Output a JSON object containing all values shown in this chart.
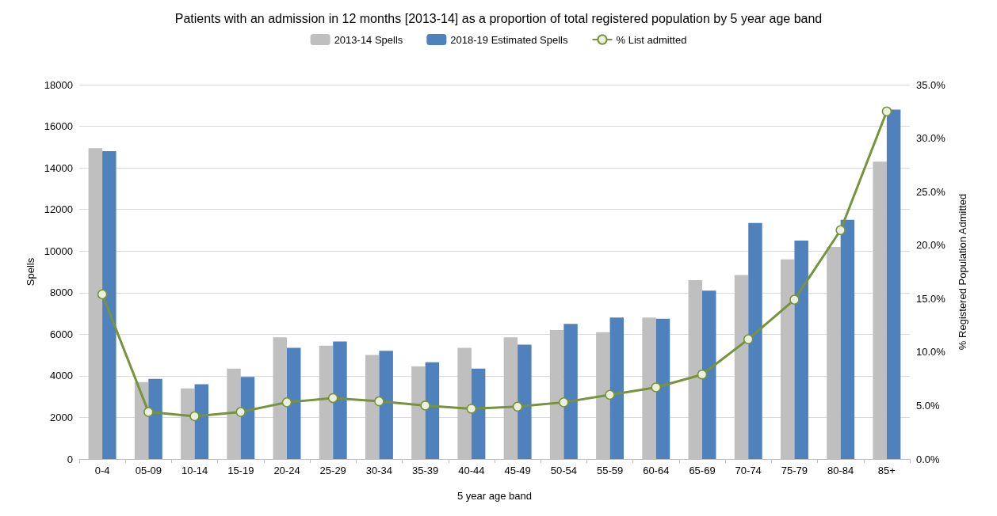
{
  "chart_data": {
    "type": "bar",
    "title": "Patients with an admission in 12 months [2013-14] as a proportion of total registered population by 5 year age band",
    "xlabel": "5 year age band",
    "ylabel": "Spells",
    "y2label": "% Registered Population Admitted",
    "categories": [
      "0-4",
      "05-09",
      "10-14",
      "15-19",
      "20-24",
      "25-29",
      "30-34",
      "35-39",
      "40-44",
      "45-49",
      "50-54",
      "55-59",
      "60-64",
      "65-69",
      "70-74",
      "75-79",
      "80-84",
      "85+"
    ],
    "series": [
      {
        "name": "2013-14 Spells",
        "color": "#bfbfbf",
        "values": [
          14950,
          3700,
          3400,
          4350,
          5850,
          5450,
          5000,
          4450,
          5350,
          5850,
          6200,
          6100,
          6800,
          8600,
          8850,
          9600,
          10200,
          14300
        ]
      },
      {
        "name": "2018-19 Estimated Spells",
        "color": "#4f81bd",
        "values": [
          14800,
          3850,
          3600,
          3950,
          5350,
          5650,
          5200,
          4650,
          4350,
          5500,
          6500,
          6800,
          6750,
          8100,
          11350,
          10500,
          11500,
          16800
        ]
      },
      {
        "name": "% List admitted",
        "type": "line",
        "axis": "y2",
        "color": "#77933c",
        "marker": "circle",
        "values": [
          15.4,
          4.4,
          4.0,
          4.4,
          5.3,
          5.7,
          5.4,
          5.0,
          4.7,
          4.9,
          5.3,
          6.0,
          6.7,
          7.9,
          11.2,
          14.9,
          21.4,
          32.5
        ]
      }
    ],
    "ylim": [
      0,
      18000
    ],
    "yticks": [
      0,
      2000,
      4000,
      6000,
      8000,
      10000,
      12000,
      14000,
      16000,
      18000
    ],
    "y2lim": [
      0,
      35
    ],
    "y2ticks": [
      {
        "value": 0,
        "label": "0.0%"
      },
      {
        "value": 5,
        "label": "5.0%"
      },
      {
        "value": 10,
        "label": "10.0%"
      },
      {
        "value": 15,
        "label": "15.0%"
      },
      {
        "value": 20,
        "label": "20.0%"
      },
      {
        "value": 25,
        "label": "25.0%"
      },
      {
        "value": 30,
        "label": "30.0%"
      },
      {
        "value": 35,
        "label": "35.0%"
      }
    ],
    "grid": "y",
    "legend": "top"
  }
}
